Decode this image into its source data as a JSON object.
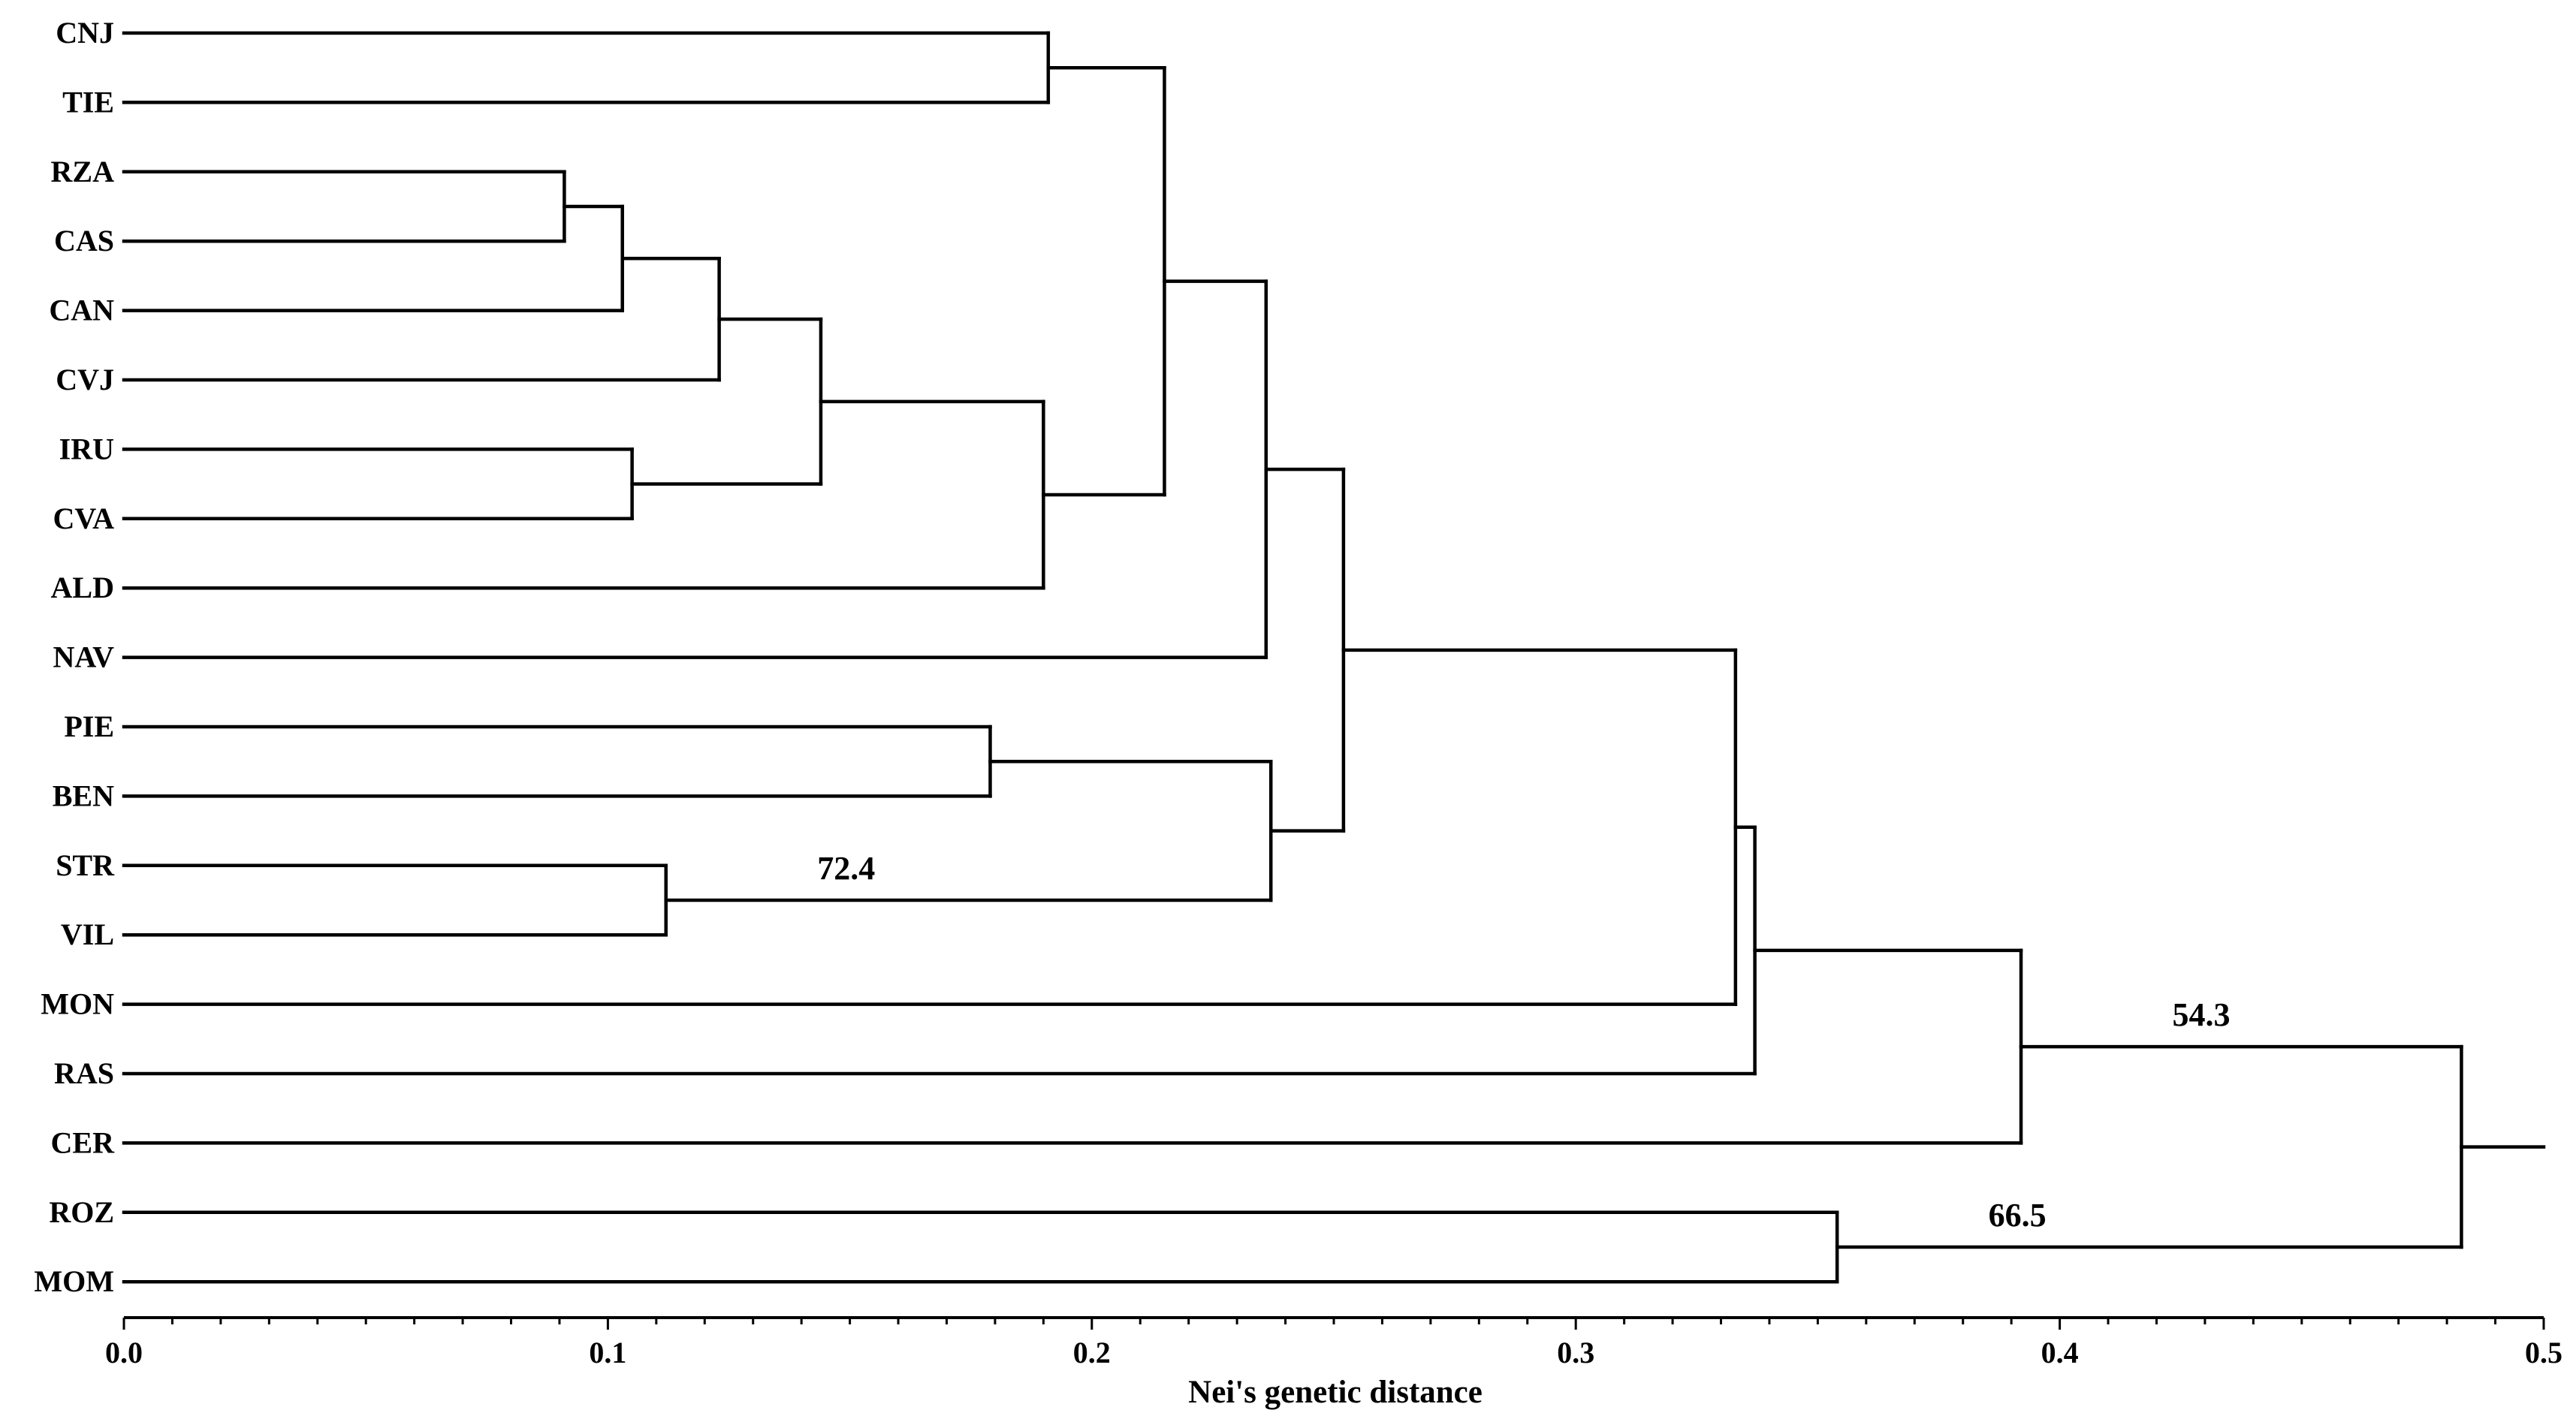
{
  "chart_data": {
    "type": "dendrogram",
    "xlabel": "Nei's genetic distance",
    "xlim": [
      0.0,
      0.5
    ],
    "major_ticks": [
      0.0,
      0.1,
      0.2,
      0.3,
      0.4,
      0.5
    ],
    "tick_labels": [
      "0.0",
      "0.1",
      "0.2",
      "0.3",
      "0.4",
      "0.5"
    ],
    "minor_tick_step": 0.01,
    "leaves": [
      "CNJ",
      "TIE",
      "RZA",
      "CAS",
      "CAN",
      "CVJ",
      "IRU",
      "CVA",
      "ALD",
      "NAV",
      "PIE",
      "BEN",
      "STR",
      "VIL",
      "MON",
      "RAS",
      "CER",
      "ROZ",
      "MOM"
    ],
    "merges": [
      {
        "id": "n1",
        "children": [
          "RZA",
          "CAS"
        ],
        "height": 0.091
      },
      {
        "id": "n2",
        "children": [
          "n1",
          "CAN"
        ],
        "height": 0.103
      },
      {
        "id": "n3",
        "children": [
          "n2",
          "CVJ"
        ],
        "height": 0.123
      },
      {
        "id": "n4",
        "children": [
          "IRU",
          "CVA"
        ],
        "height": 0.105
      },
      {
        "id": "n5",
        "children": [
          "n3",
          "n4"
        ],
        "height": 0.144
      },
      {
        "id": "n6",
        "children": [
          "n5",
          "ALD"
        ],
        "height": 0.19
      },
      {
        "id": "n7",
        "children": [
          "CNJ",
          "TIE"
        ],
        "height": 0.191
      },
      {
        "id": "n8",
        "children": [
          "n7",
          "n6"
        ],
        "height": 0.215
      },
      {
        "id": "n9",
        "children": [
          "n8",
          "NAV"
        ],
        "height": 0.236
      },
      {
        "id": "n10",
        "children": [
          "PIE",
          "BEN"
        ],
        "height": 0.179
      },
      {
        "id": "n11",
        "children": [
          "STR",
          "VIL"
        ],
        "height": 0.112,
        "bootstrap": "72.4"
      },
      {
        "id": "n12",
        "children": [
          "n10",
          "n11"
        ],
        "height": 0.237
      },
      {
        "id": "n13",
        "children": [
          "n9",
          "n12"
        ],
        "height": 0.252
      },
      {
        "id": "n14",
        "children": [
          "n13",
          "MON"
        ],
        "height": 0.333
      },
      {
        "id": "n15",
        "children": [
          "n14",
          "RAS"
        ],
        "height": 0.337
      },
      {
        "id": "n16",
        "children": [
          "n15",
          "CER"
        ],
        "height": 0.392,
        "bootstrap": "54.3"
      },
      {
        "id": "n17",
        "children": [
          "ROZ",
          "MOM"
        ],
        "height": 0.354,
        "bootstrap": "66.5"
      },
      {
        "id": "n18",
        "children": [
          "n16",
          "n17"
        ],
        "height": 0.483
      }
    ],
    "root_height": 0.5
  }
}
